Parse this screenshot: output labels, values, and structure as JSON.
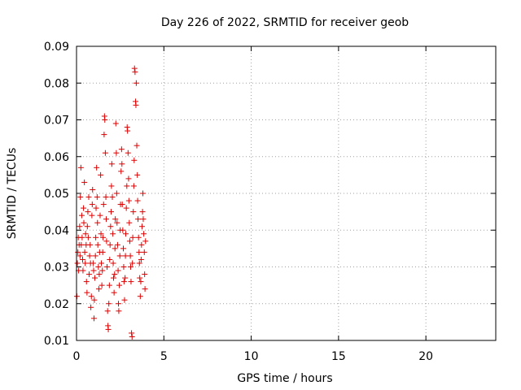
{
  "chart_data": {
    "type": "scatter",
    "title": "Day 226 of 2022, SRMTID for receiver geob",
    "xlabel": "GPS time / hours",
    "ylabel": "SRMTID / TECUs",
    "xlim": [
      0,
      24
    ],
    "ylim": [
      0.01,
      0.09
    ],
    "x_ticks": [
      0,
      5,
      10,
      15,
      20
    ],
    "y_ticks": [
      0.01,
      0.02,
      0.03,
      0.04,
      0.05,
      0.06,
      0.07,
      0.08,
      0.09
    ],
    "x_tick_labels": [
      "0",
      "5",
      "10",
      "15",
      "20"
    ],
    "y_tick_labels": [
      "0.01",
      "0.02",
      "0.03",
      "0.04",
      "0.05",
      "0.06",
      "0.07",
      "0.08",
      "0.09"
    ],
    "grid": true,
    "marker": "+",
    "series": [
      {
        "name": "SRMTID",
        "color": "#dd0000",
        "points": [
          [
            0.02,
            0.022
          ],
          [
            0.05,
            0.031
          ],
          [
            0.08,
            0.034
          ],
          [
            0.1,
            0.038
          ],
          [
            0.12,
            0.029
          ],
          [
            0.15,
            0.036
          ],
          [
            0.18,
            0.041
          ],
          [
            0.2,
            0.033
          ],
          [
            0.22,
            0.049
          ],
          [
            0.25,
            0.057
          ],
          [
            0.27,
            0.036
          ],
          [
            0.3,
            0.044
          ],
          [
            0.32,
            0.038
          ],
          [
            0.35,
            0.032
          ],
          [
            0.37,
            0.029
          ],
          [
            0.4,
            0.046
          ],
          [
            0.42,
            0.042
          ],
          [
            0.45,
            0.053
          ],
          [
            0.47,
            0.034
          ],
          [
            0.5,
            0.031
          ],
          [
            0.52,
            0.039
          ],
          [
            0.55,
            0.036
          ],
          [
            0.57,
            0.026
          ],
          [
            0.6,
            0.023
          ],
          [
            0.62,
            0.041
          ],
          [
            0.65,
            0.045
          ],
          [
            0.67,
            0.038
          ],
          [
            0.7,
            0.049
          ],
          [
            0.72,
            0.028
          ],
          [
            0.75,
            0.033
          ],
          [
            0.78,
            0.036
          ],
          [
            0.8,
            0.031
          ],
          [
            0.82,
            0.019
          ],
          [
            0.85,
            0.022
          ],
          [
            0.88,
            0.044
          ],
          [
            0.9,
            0.047
          ],
          [
            0.92,
            0.051
          ],
          [
            0.95,
            0.031
          ],
          [
            0.98,
            0.029
          ],
          [
            1.0,
            0.016
          ],
          [
            1.02,
            0.021
          ],
          [
            1.05,
            0.027
          ],
          [
            1.08,
            0.033
          ],
          [
            1.1,
            0.038
          ],
          [
            1.12,
            0.046
          ],
          [
            1.15,
            0.057
          ],
          [
            1.18,
            0.049
          ],
          [
            1.2,
            0.042
          ],
          [
            1.22,
            0.036
          ],
          [
            1.25,
            0.03
          ],
          [
            1.28,
            0.024
          ],
          [
            1.3,
            0.028
          ],
          [
            1.32,
            0.034
          ],
          [
            1.35,
            0.044
          ],
          [
            1.38,
            0.055
          ],
          [
            1.4,
            0.039
          ],
          [
            1.42,
            0.031
          ],
          [
            1.45,
            0.025
          ],
          [
            1.48,
            0.029
          ],
          [
            1.5,
            0.034
          ],
          [
            1.52,
            0.038
          ],
          [
            1.55,
            0.047
          ],
          [
            1.58,
            0.066
          ],
          [
            1.6,
            0.071
          ],
          [
            1.62,
            0.07
          ],
          [
            1.65,
            0.061
          ],
          [
            1.68,
            0.049
          ],
          [
            1.7,
            0.043
          ],
          [
            1.72,
            0.037
          ],
          [
            1.75,
            0.03
          ],
          [
            1.78,
            0.018
          ],
          [
            1.8,
            0.014
          ],
          [
            1.82,
            0.013
          ],
          [
            1.85,
            0.02
          ],
          [
            1.88,
            0.025
          ],
          [
            1.9,
            0.032
          ],
          [
            1.92,
            0.036
          ],
          [
            1.95,
            0.041
          ],
          [
            1.98,
            0.045
          ],
          [
            2.0,
            0.052
          ],
          [
            2.02,
            0.058
          ],
          [
            2.05,
            0.049
          ],
          [
            2.08,
            0.039
          ],
          [
            2.1,
            0.031
          ],
          [
            2.12,
            0.027
          ],
          [
            2.15,
            0.023
          ],
          [
            2.18,
            0.028
          ],
          [
            2.2,
            0.035
          ],
          [
            2.22,
            0.043
          ],
          [
            2.25,
            0.069
          ],
          [
            2.28,
            0.061
          ],
          [
            2.3,
            0.05
          ],
          [
            2.32,
            0.042
          ],
          [
            2.35,
            0.036
          ],
          [
            2.38,
            0.029
          ],
          [
            2.4,
            0.02
          ],
          [
            2.42,
            0.018
          ],
          [
            2.45,
            0.025
          ],
          [
            2.48,
            0.033
          ],
          [
            2.5,
            0.04
          ],
          [
            2.52,
            0.047
          ],
          [
            2.55,
            0.056
          ],
          [
            2.58,
            0.062
          ],
          [
            2.6,
            0.058
          ],
          [
            2.62,
            0.047
          ],
          [
            2.65,
            0.04
          ],
          [
            2.68,
            0.035
          ],
          [
            2.7,
            0.03
          ],
          [
            2.72,
            0.026
          ],
          [
            2.75,
            0.021
          ],
          [
            2.78,
            0.027
          ],
          [
            2.8,
            0.033
          ],
          [
            2.82,
            0.039
          ],
          [
            2.85,
            0.046
          ],
          [
            2.88,
            0.052
          ],
          [
            2.9,
            0.068
          ],
          [
            2.92,
            0.067
          ],
          [
            2.95,
            0.061
          ],
          [
            2.98,
            0.054
          ],
          [
            3.0,
            0.048
          ],
          [
            3.02,
            0.042
          ],
          [
            3.05,
            0.037
          ],
          [
            3.08,
            0.033
          ],
          [
            3.1,
            0.03
          ],
          [
            3.12,
            0.026
          ],
          [
            3.15,
            0.012
          ],
          [
            3.18,
            0.011
          ],
          [
            3.2,
            0.031
          ],
          [
            3.22,
            0.038
          ],
          [
            3.25,
            0.045
          ],
          [
            3.28,
            0.052
          ],
          [
            3.3,
            0.059
          ],
          [
            3.32,
            0.084
          ],
          [
            3.35,
            0.083
          ],
          [
            3.38,
            0.075
          ],
          [
            3.4,
            0.074
          ],
          [
            3.42,
            0.08
          ],
          [
            3.45,
            0.063
          ],
          [
            3.48,
            0.055
          ],
          [
            3.5,
            0.048
          ],
          [
            3.52,
            0.043
          ],
          [
            3.55,
            0.038
          ],
          [
            3.58,
            0.034
          ],
          [
            3.6,
            0.031
          ],
          [
            3.62,
            0.027
          ],
          [
            3.65,
            0.022
          ],
          [
            3.68,
            0.026
          ],
          [
            3.7,
            0.032
          ],
          [
            3.72,
            0.036
          ],
          [
            3.75,
            0.041
          ],
          [
            3.78,
            0.045
          ],
          [
            3.8,
            0.05
          ],
          [
            3.82,
            0.043
          ],
          [
            3.85,
            0.039
          ],
          [
            3.88,
            0.034
          ],
          [
            3.9,
            0.028
          ],
          [
            3.92,
            0.024
          ],
          [
            3.95,
            0.037
          ]
        ]
      }
    ]
  }
}
